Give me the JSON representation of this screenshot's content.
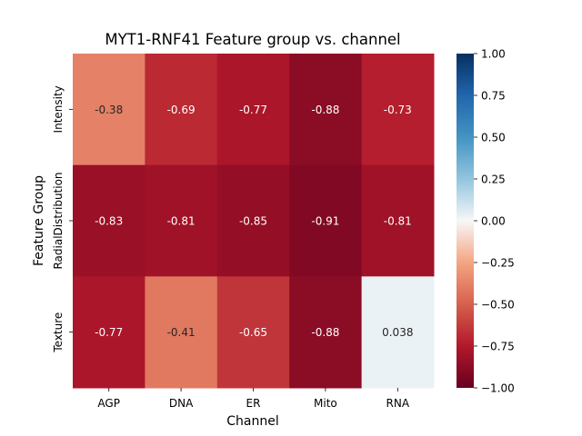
{
  "chart_data": {
    "type": "heatmap",
    "title": "MYT1-RNF41 Feature group  vs. channel",
    "xlabel": "Channel",
    "ylabel": "Feature Group",
    "x_categories": [
      "AGP",
      "DNA",
      "ER",
      "Mito",
      "RNA"
    ],
    "y_categories": [
      "Intensity",
      "RadialDistribution",
      "Texture"
    ],
    "values": [
      [
        -0.38,
        -0.69,
        -0.77,
        -0.88,
        -0.73
      ],
      [
        -0.83,
        -0.81,
        -0.85,
        -0.91,
        -0.81
      ],
      [
        -0.77,
        -0.41,
        -0.65,
        -0.88,
        0.038
      ]
    ],
    "cell_labels": [
      [
        "-0.38",
        "-0.69",
        "-0.77",
        "-0.88",
        "-0.73"
      ],
      [
        "-0.83",
        "-0.81",
        "-0.85",
        "-0.91",
        "-0.81"
      ],
      [
        "-0.77",
        "-0.41",
        "-0.65",
        "-0.88",
        "0.038"
      ]
    ],
    "colormap": "RdBu",
    "vmin": -1.0,
    "vmax": 1.0,
    "colorbar_ticks": [
      1.0,
      0.75,
      0.5,
      0.25,
      0.0,
      -0.25,
      -0.5,
      -0.75,
      -1.0
    ],
    "colorbar_tick_labels": [
      "1.00",
      "0.75",
      "0.50",
      "0.25",
      "0.00",
      "−0.25",
      "−0.50",
      "−0.75",
      "−1.00"
    ],
    "grid": false
  }
}
